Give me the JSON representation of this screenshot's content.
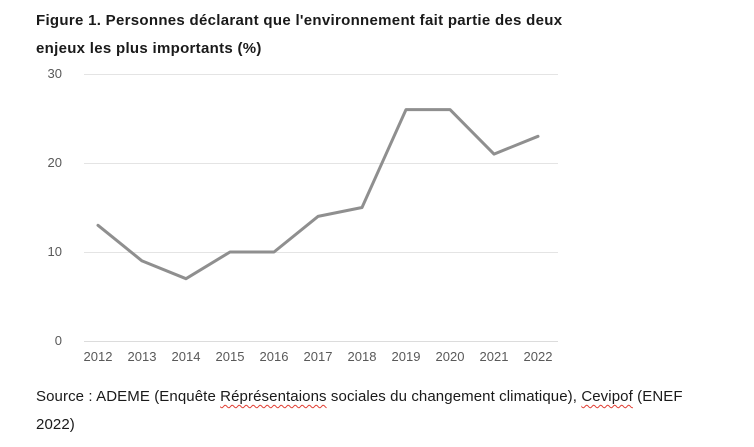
{
  "figure": {
    "title_line1": "Figure 1. Personnes déclarant que l'environnement fait partie des deux",
    "title_line2": "enjeux les plus importants (%)"
  },
  "chart_data": {
    "type": "line",
    "title": "Figure 1. Personnes déclarant que l'environnement fait partie des deux enjeux les plus importants (%)",
    "categories": [
      "2012",
      "2013",
      "2014",
      "2015",
      "2016",
      "2017",
      "2018",
      "2019",
      "2020",
      "2021",
      "2022"
    ],
    "values": [
      13,
      9,
      7,
      10,
      10,
      14,
      15,
      26,
      26,
      21,
      23
    ],
    "series_name": "Personnes déclarant que l'environnement fait partie des deux enjeux les plus importants (%)",
    "xlabel": "",
    "ylabel": "",
    "ylim": [
      0,
      30
    ],
    "yticks": [
      0,
      10,
      20,
      30
    ],
    "grid": true,
    "legend": false,
    "line_color": "#8f8f8f",
    "line_width": 3,
    "gridline_color": "#e4e4e4",
    "tick_label_color": "#595959"
  },
  "source_note": {
    "part1": "Source : ADEME (Enquête ",
    "misspelled_word1": "Réprésentaions",
    "part2": " sociales du changement climatique), ",
    "misspelled_word2": "Cevipof",
    "part3": " (ENEF",
    "line2": "2022)",
    "spellcheck_color": "#e03c31"
  }
}
